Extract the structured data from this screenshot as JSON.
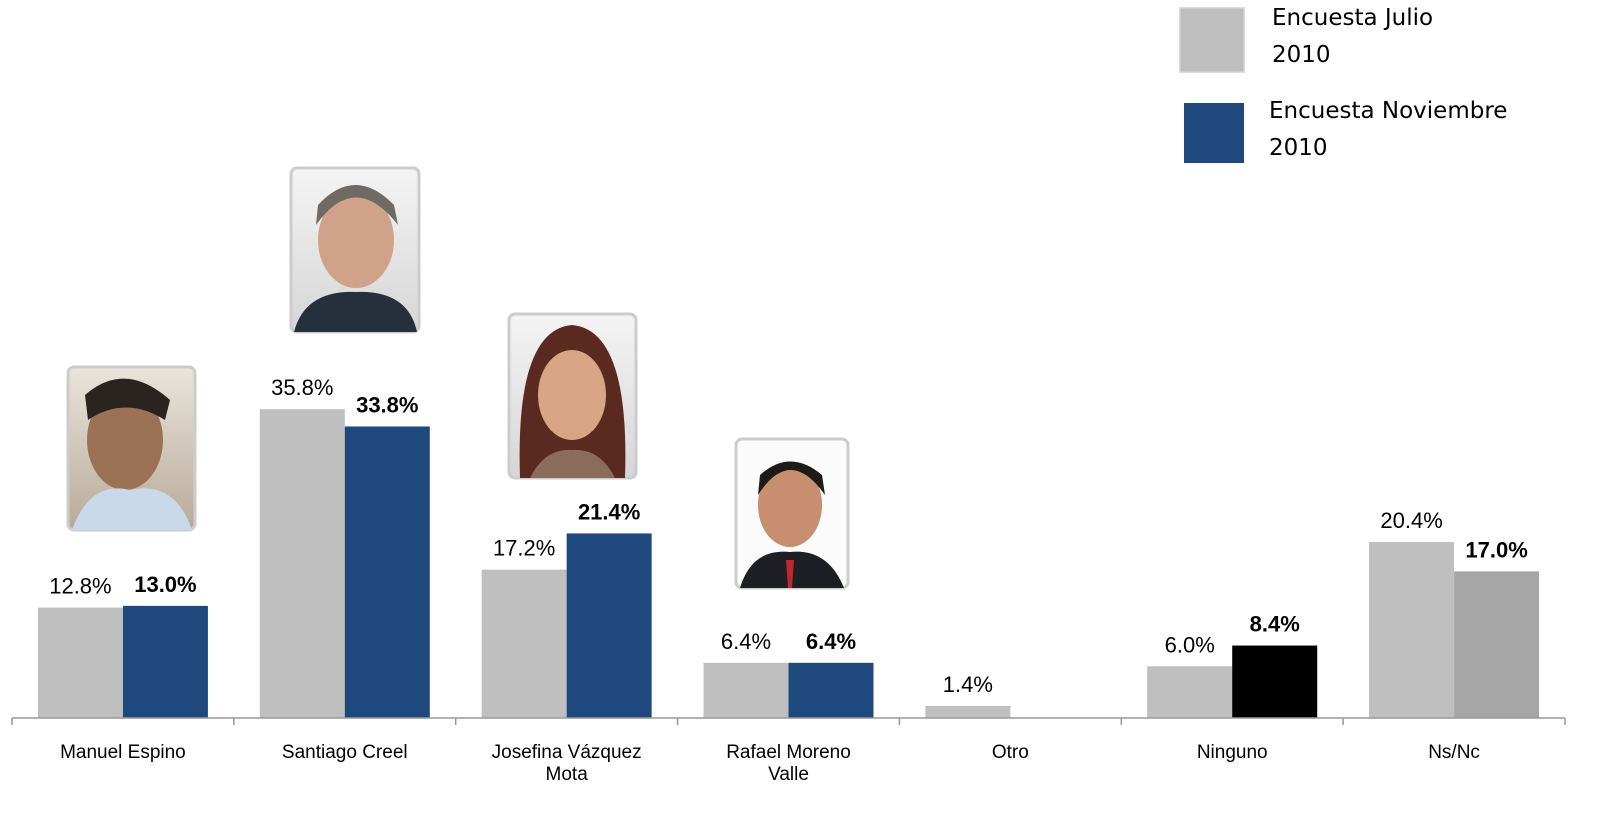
{
  "chart_data": {
    "type": "bar",
    "categories": [
      "Manuel Espino",
      "Santiago Creel",
      "Josefina Vázquez Mota",
      "Rafael Moreno Valle",
      "Otro",
      "Ninguno",
      "Ns/Nc"
    ],
    "series": [
      {
        "name": "Encuesta Julio 2010",
        "color": "#bfbfbf",
        "values": [
          12.8,
          35.8,
          17.2,
          6.4,
          1.4,
          6.0,
          20.4
        ],
        "value_labels": [
          "12.8%",
          "35.8%",
          "17.2%",
          "6.4%",
          "1.4%",
          "6.0%",
          "20.4%"
        ]
      },
      {
        "name": "Encuesta Noviembre 2010",
        "color": "#1f497d",
        "colors": [
          "#1f497d",
          "#1f497d",
          "#1f497d",
          "#1f497d",
          "#1f497d",
          "#000000",
          "#a6a6a6"
        ],
        "values": [
          13.0,
          33.8,
          21.4,
          6.4,
          null,
          8.4,
          17.0
        ],
        "value_labels": [
          "13.0%",
          "33.8%",
          "21.4%",
          "6.4%",
          null,
          "8.4%",
          "17.0%"
        ]
      }
    ],
    "ylim": [
      0,
      40
    ],
    "grid": false,
    "legend": "top-right"
  }
}
